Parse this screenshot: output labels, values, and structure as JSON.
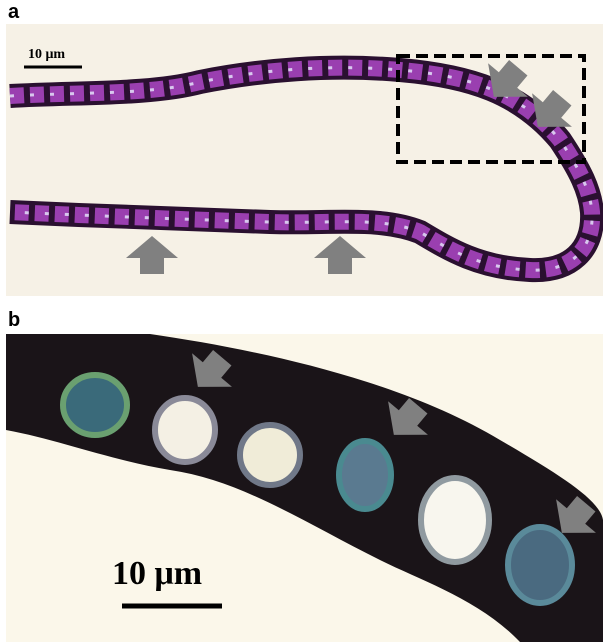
{
  "panels": [
    {
      "label": "a",
      "scale_bar": "10 μm"
    },
    {
      "label": "b",
      "scale_bar": "10 μm"
    }
  ]
}
